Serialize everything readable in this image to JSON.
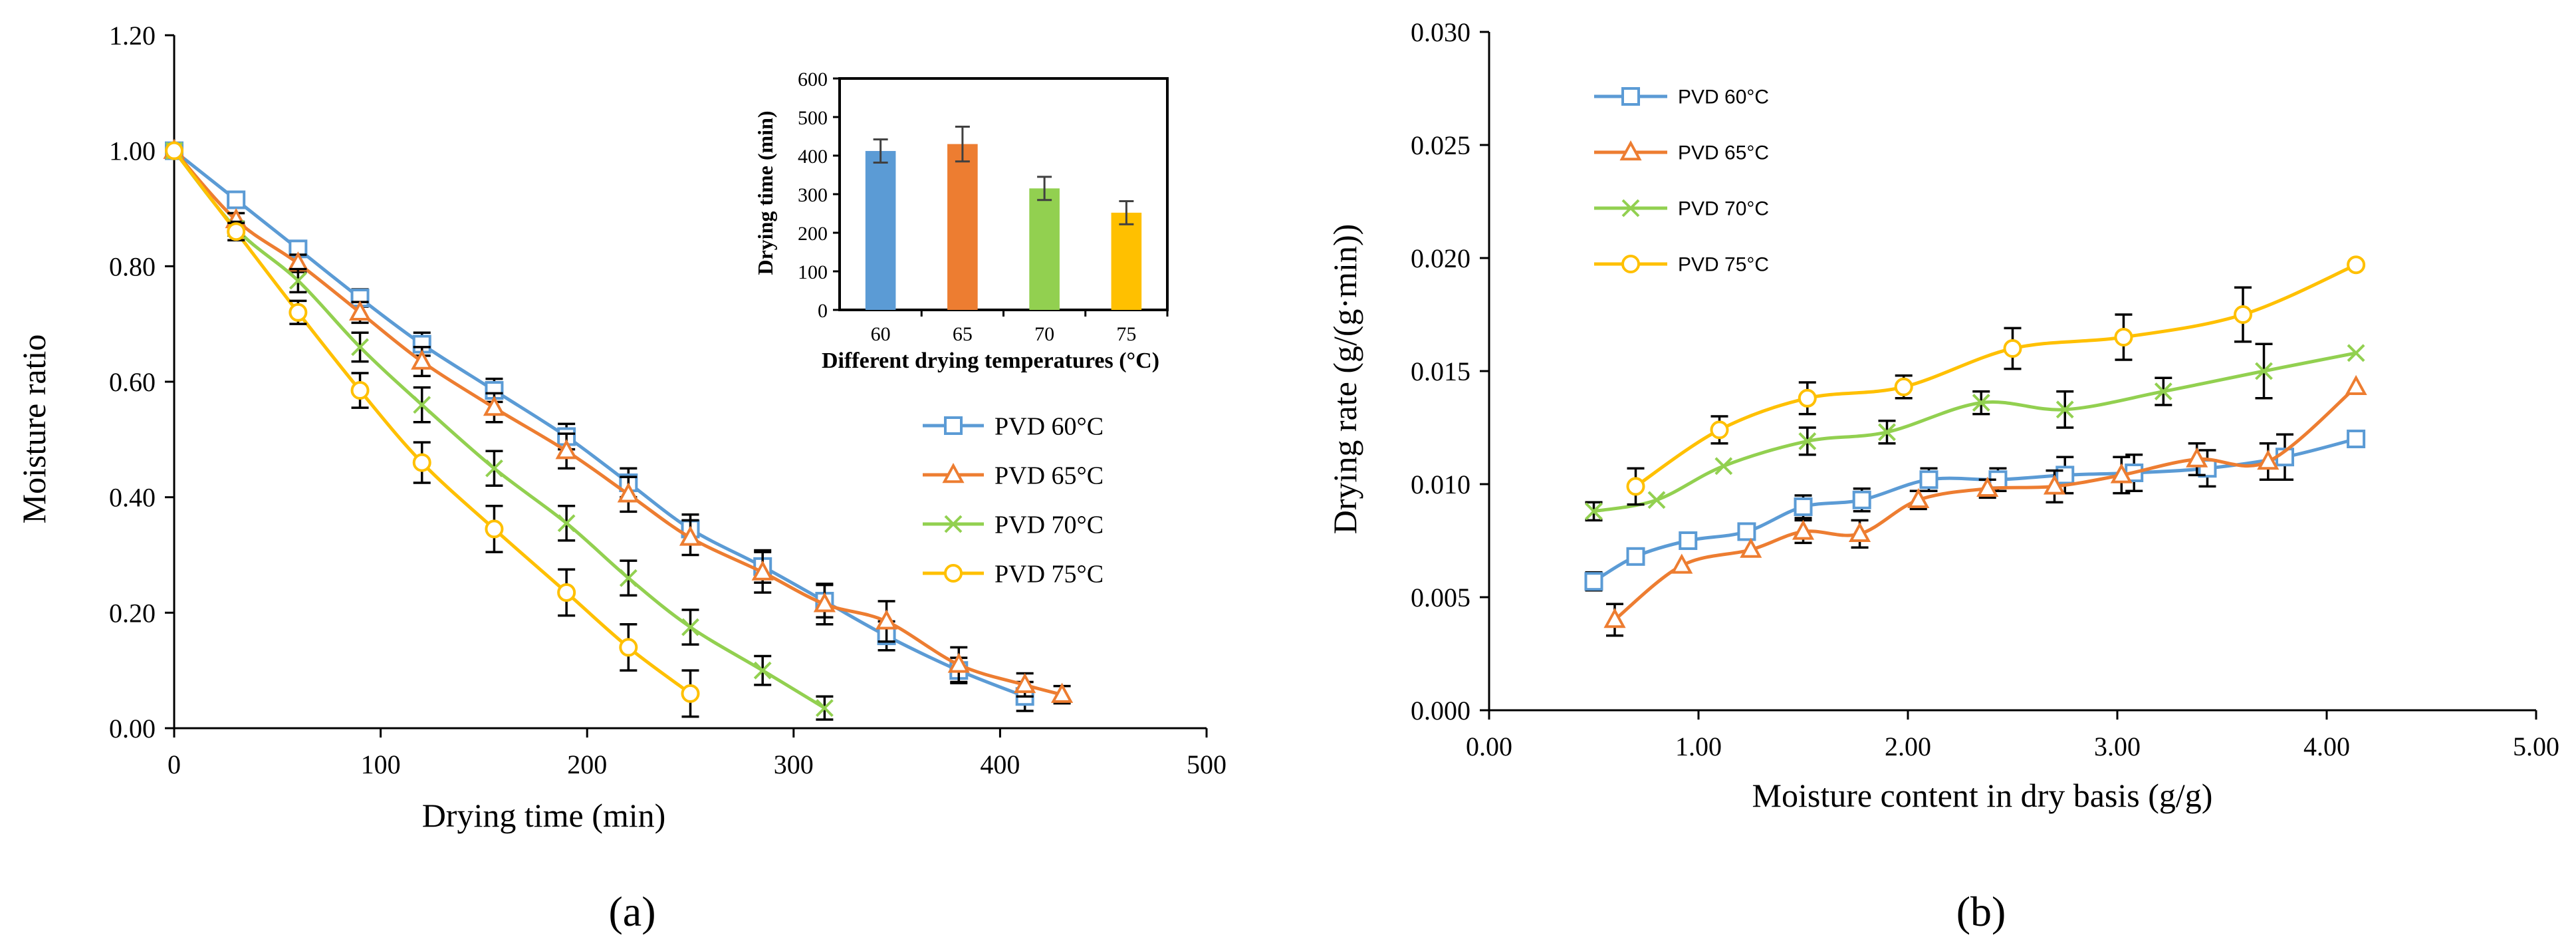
{
  "figure": {
    "panel_labels": [
      "(a)",
      "(b)"
    ]
  },
  "chart_data": [
    {
      "type": "line",
      "title": "",
      "xlabel": "Drying time (min)",
      "ylabel": "Moisture ratio",
      "xlim": [
        0,
        500
      ],
      "ylim": [
        0,
        1.2
      ],
      "xticks": [
        "0",
        "100",
        "200",
        "300",
        "400",
        "500"
      ],
      "yticks": [
        "0.00",
        "0.20",
        "0.40",
        "0.60",
        "0.80",
        "1.00",
        "1.20"
      ],
      "grid": false,
      "legend_position": "right-middle",
      "series": [
        {
          "name": "PVD 60°C",
          "color": "#5B9BD5",
          "marker": "square",
          "x": [
            0,
            30,
            60,
            90,
            120,
            155,
            190,
            220,
            250,
            285,
            315,
            345,
            380,
            412
          ],
          "y": [
            1.0,
            0.915,
            0.83,
            0.745,
            0.665,
            0.585,
            0.505,
            0.425,
            0.345,
            0.28,
            0.22,
            0.16,
            0.1,
            0.055
          ],
          "err": [
            0,
            0.012,
            0.012,
            0.015,
            0.02,
            0.02,
            0.022,
            0.025,
            0.025,
            0.028,
            0.028,
            0.025,
            0.022,
            0.025
          ]
        },
        {
          "name": "PVD 65°C",
          "color": "#ED7D31",
          "marker": "triangle",
          "x": [
            0,
            30,
            60,
            90,
            120,
            155,
            190,
            220,
            250,
            285,
            315,
            345,
            380,
            412,
            430
          ],
          "y": [
            1.0,
            0.88,
            0.805,
            0.72,
            0.635,
            0.555,
            0.48,
            0.405,
            0.33,
            0.27,
            0.215,
            0.185,
            0.11,
            0.075,
            0.058
          ],
          "err": [
            0,
            0.012,
            0.015,
            0.018,
            0.025,
            0.025,
            0.03,
            0.03,
            0.03,
            0.035,
            0.035,
            0.035,
            0.03,
            0.02,
            0.015
          ]
        },
        {
          "name": "PVD 70°C",
          "color": "#92D050",
          "marker": "x",
          "x": [
            0,
            30,
            60,
            90,
            120,
            155,
            190,
            220,
            250,
            285,
            315
          ],
          "y": [
            1.0,
            0.865,
            0.775,
            0.66,
            0.56,
            0.45,
            0.355,
            0.26,
            0.175,
            0.1,
            0.035
          ],
          "err": [
            0,
            0.012,
            0.02,
            0.025,
            0.03,
            0.03,
            0.03,
            0.03,
            0.03,
            0.025,
            0.02
          ]
        },
        {
          "name": "PVD 75°C",
          "color": "#FFC000",
          "marker": "circle",
          "x": [
            0,
            30,
            60,
            90,
            120,
            155,
            190,
            220,
            250
          ],
          "y": [
            1.0,
            0.86,
            0.72,
            0.585,
            0.46,
            0.345,
            0.235,
            0.14,
            0.06
          ],
          "err": [
            0,
            0.015,
            0.02,
            0.03,
            0.035,
            0.04,
            0.04,
            0.04,
            0.04
          ]
        }
      ]
    },
    {
      "type": "bar",
      "title": "",
      "xlabel": "Different drying temperatures (°C)",
      "ylabel": "Drying time (min)",
      "categories": [
        "60",
        "65",
        "70",
        "75"
      ],
      "values": [
        412,
        430,
        315,
        252
      ],
      "errors": [
        30,
        45,
        30,
        30
      ],
      "colors": [
        "#5B9BD5",
        "#ED7D31",
        "#92D050",
        "#FFC000"
      ],
      "ylim": [
        0,
        600
      ],
      "yticks": [
        "0",
        "100",
        "200",
        "300",
        "400",
        "500",
        "600"
      ],
      "grid": false
    },
    {
      "type": "line",
      "title": "",
      "xlabel": "Moisture content in dry basis (g/g)",
      "ylabel": "Drying rate (g/(g·min))",
      "xlim": [
        0,
        5
      ],
      "ylim": [
        0,
        0.03
      ],
      "xticks": [
        "0.00",
        "1.00",
        "2.00",
        "3.00",
        "4.00",
        "5.00"
      ],
      "yticks": [
        "0.000",
        "0.005",
        "0.010",
        "0.015",
        "0.020",
        "0.025",
        "0.030"
      ],
      "grid": false,
      "legend_position": "top-left",
      "series": [
        {
          "name": "PVD 60°C",
          "color": "#5B9BD5",
          "marker": "square",
          "x": [
            0.5,
            0.7,
            0.95,
            1.23,
            1.5,
            1.78,
            2.1,
            2.43,
            2.75,
            3.08,
            3.43,
            3.8,
            4.14
          ],
          "y": [
            0.0057,
            0.0068,
            0.0075,
            0.0079,
            0.009,
            0.0093,
            0.0102,
            0.0102,
            0.0104,
            0.0105,
            0.0107,
            0.0112,
            0.012
          ],
          "err": [
            0.0004,
            0,
            0,
            0,
            0.0005,
            0.0005,
            0.0005,
            0.0005,
            0.0008,
            0.0008,
            0.0008,
            0.001,
            0
          ]
        },
        {
          "name": "PVD 65°C",
          "color": "#ED7D31",
          "marker": "triangle",
          "x": [
            0.6,
            0.92,
            1.25,
            1.5,
            1.77,
            2.05,
            2.38,
            2.7,
            3.02,
            3.38,
            3.72,
            4.14
          ],
          "y": [
            0.004,
            0.0064,
            0.0071,
            0.0079,
            0.0078,
            0.0093,
            0.0098,
            0.0099,
            0.0104,
            0.0111,
            0.011,
            0.0143
          ],
          "err": [
            0.0007,
            0,
            0,
            0.0005,
            0.0006,
            0.0004,
            0.0004,
            0.0007,
            0.0008,
            0.0007,
            0.0008,
            0
          ]
        },
        {
          "name": "PVD 70°C",
          "color": "#92D050",
          "marker": "x",
          "x": [
            0.5,
            0.8,
            1.12,
            1.52,
            1.9,
            2.35,
            2.75,
            3.22,
            3.7,
            4.14
          ],
          "y": [
            0.0088,
            0.0093,
            0.0108,
            0.0119,
            0.0123,
            0.0136,
            0.0133,
            0.0141,
            0.015,
            0.0158
          ],
          "err": [
            0.0004,
            0,
            0,
            0.0006,
            0.0005,
            0.0005,
            0.0008,
            0.0006,
            0.0012,
            0
          ]
        },
        {
          "name": "PVD 75°C",
          "color": "#FFC000",
          "marker": "circle",
          "x": [
            0.7,
            1.1,
            1.52,
            1.98,
            2.5,
            3.03,
            3.6,
            4.14
          ],
          "y": [
            0.0099,
            0.0124,
            0.0138,
            0.0143,
            0.016,
            0.0165,
            0.0175,
            0.0197
          ],
          "err": [
            0.0008,
            0.0006,
            0.0007,
            0.0005,
            0.0009,
            0.001,
            0.0012,
            0
          ]
        }
      ]
    }
  ]
}
